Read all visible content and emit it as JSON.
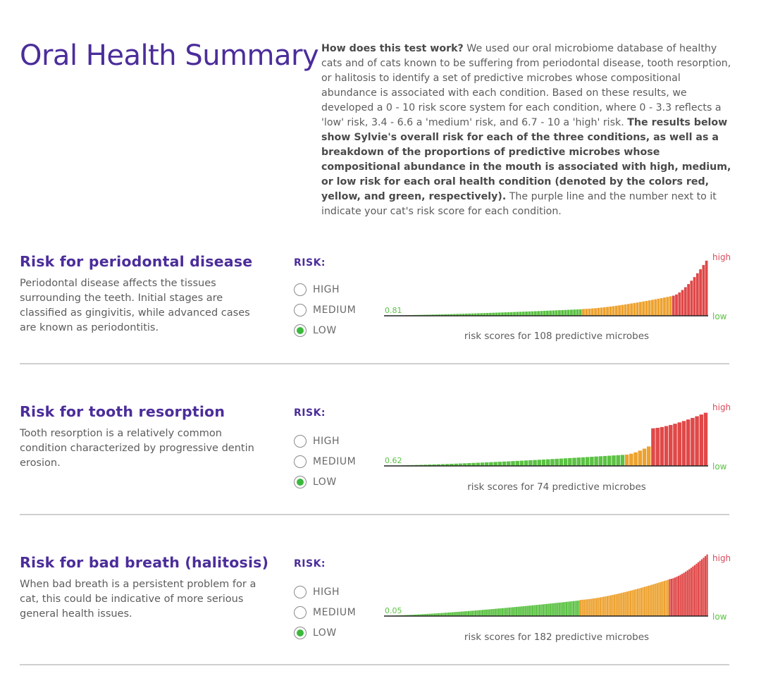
{
  "header": {
    "title": "Oral Health Summary"
  },
  "intro": {
    "lead_bold": "How does this test work?",
    "text_1": " We used our oral microbiome database of healthy cats and of cats known to be suffering from periodontal disease, tooth resorption, or halitosis to identify a set of predictive microbes whose compositional abundance is associated with each condition. Based on these results, we developed a 0 - 10 risk score system for each condition, where 0 - 3.3 reflects a 'low' risk, 3.4 - 6.6 a 'medium' risk, and 6.7 - 10 a 'high' risk. ",
    "bold_2": "The results below show Sylvie's overall risk for each of the three conditions, as well as a breakdown of the proportions of predictive microbes whose compositional abundance in the mouth is associated with high, medium, or low risk for each oral health condition (denoted by the colors red, yellow, and green, respectively).",
    "text_3": " The purple line and the number next to it indicate your cat's risk score for each condition."
  },
  "colors": {
    "title": "#4b2d9a",
    "green": "#5cc244",
    "orange": "#eda22f",
    "red": "#e04848",
    "axis": "#222222",
    "low_label": "#5cc244",
    "high_label": "#d94c5c"
  },
  "sections": [
    {
      "title": "Risk for periodontal disease",
      "description": "Periodontal disease affects the tissues surrounding the teeth. Initial stages are classified as gingivitis, while advanced cases are known as periodontitis.",
      "risk_label": "RISK:",
      "options": [
        "HIGH",
        "MEDIUM",
        "LOW"
      ],
      "selected": "LOW",
      "score_label": "0.81",
      "caption": "risk scores for 108 predictive microbes",
      "high_label": "high",
      "low_label": "low"
    },
    {
      "title": "Risk for tooth resorption",
      "description": "Tooth resorption is a relatively common condition characterized by progressive dentin erosion.",
      "risk_label": "RISK:",
      "options": [
        "HIGH",
        "MEDIUM",
        "LOW"
      ],
      "selected": "LOW",
      "score_label": "0.62",
      "caption": "risk scores for 74 predictive microbes",
      "high_label": "high",
      "low_label": "low"
    },
    {
      "title": "Risk for bad breath (halitosis)",
      "description": "When bad breath is a persistent problem for a cat, this could be indicative of more serious general health issues.",
      "risk_label": "RISK:",
      "options": [
        "HIGH",
        "MEDIUM",
        "LOW"
      ],
      "selected": "LOW",
      "score_label": "0.05",
      "caption": "risk scores for 182 predictive microbes",
      "high_label": "high",
      "low_label": "low"
    }
  ],
  "chart_data": [
    {
      "type": "bar",
      "score": 0.81,
      "count": 108,
      "groups": [
        {
          "color": "green",
          "n": 66,
          "from": 0.05,
          "to": 1.0
        },
        {
          "color": "orange",
          "n": 30,
          "from": 1.05,
          "to": 3.0
        },
        {
          "color": "red",
          "n": 12,
          "from": 3.1,
          "to": 8.5
        }
      ]
    },
    {
      "type": "bar",
      "score": 0.62,
      "count": 74,
      "groups": [
        {
          "color": "green",
          "n": 55,
          "from": 0.05,
          "to": 1.7
        },
        {
          "color": "orange",
          "n": 6,
          "from": 1.75,
          "to": 3.0
        },
        {
          "color": "red",
          "n": 13,
          "from": 5.8,
          "to": 8.2
        }
      ]
    },
    {
      "type": "bar",
      "score": 0.05,
      "count": 182,
      "groups": [
        {
          "color": "green",
          "n": 110,
          "from": 0.05,
          "to": 2.4
        },
        {
          "color": "orange",
          "n": 50,
          "from": 2.5,
          "to": 5.6
        },
        {
          "color": "red",
          "n": 22,
          "from": 5.7,
          "to": 9.5
        }
      ]
    }
  ]
}
